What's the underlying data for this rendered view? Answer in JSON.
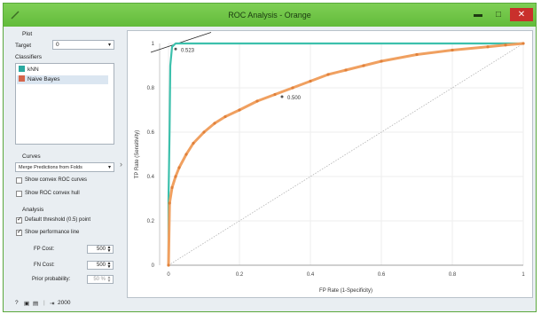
{
  "window": {
    "title": "ROC Analysis - Orange"
  },
  "controls": {
    "plot_section": "Plot",
    "target_label": "Target",
    "target_value": "0",
    "classifiers_label": "Classifiers",
    "classifiers": [
      {
        "name": "kNN",
        "color": "#2aa9a0"
      },
      {
        "name": "Naive Bayes",
        "color": "#d6654a"
      }
    ],
    "curves_label": "Curves",
    "curves_value": "Merge Predictions from Folds",
    "show_convex_curves": "Show convex ROC curves",
    "show_convex_hull": "Show ROC convex hull",
    "analysis_label": "Analysis",
    "default_threshold": "Default threshold (0.5) point",
    "show_performance_line": "Show performance line",
    "fp_cost_label": "FP Cost:",
    "fp_cost_value": "500",
    "fn_cost_label": "FN Cost:",
    "fn_cost_value": "500",
    "prior_label": "Prior probability:",
    "prior_value": "50 %"
  },
  "statusbar": {
    "count": "2000"
  },
  "chart_data": {
    "type": "line",
    "title": "",
    "xlabel": "FP Rate (1-Specificity)",
    "ylabel": "TP Rate (Sensitivity)",
    "xlim": [
      0,
      1
    ],
    "ylim": [
      0,
      1
    ],
    "x_ticks": [
      "0",
      "0.2",
      "0.4",
      "0.6",
      "0.8",
      "1"
    ],
    "y_ticks": [
      "0",
      "0.2",
      "0.4",
      "0.6",
      "0.8",
      "1"
    ],
    "grid": true,
    "diagonal": true,
    "series": [
      {
        "name": "kNN",
        "color": "#3cc0ac",
        "x": [
          0,
          0,
          0.003,
          0.005,
          0.01,
          0.02,
          1
        ],
        "y": [
          0,
          0.3,
          0.6,
          0.9,
          0.985,
          1,
          1
        ]
      },
      {
        "name": "Naive Bayes",
        "color": "#f0a060",
        "x": [
          0,
          0.003,
          0.01,
          0.02,
          0.03,
          0.05,
          0.07,
          0.1,
          0.13,
          0.16,
          0.2,
          0.25,
          0.3,
          0.35,
          0.4,
          0.45,
          0.5,
          0.55,
          0.6,
          0.7,
          0.8,
          0.9,
          0.95,
          1
        ],
        "y": [
          0,
          0.28,
          0.35,
          0.4,
          0.44,
          0.5,
          0.55,
          0.6,
          0.64,
          0.67,
          0.7,
          0.74,
          0.77,
          0.8,
          0.83,
          0.86,
          0.88,
          0.9,
          0.92,
          0.95,
          0.97,
          0.985,
          0.993,
          1
        ]
      }
    ],
    "annotations": [
      {
        "text": "0.523",
        "x": 0.02,
        "y": 0.975
      },
      {
        "text": "0.500",
        "x": 0.32,
        "y": 0.76
      }
    ],
    "performance_line": {
      "x": [
        -0.05,
        0.12
      ],
      "y": [
        0.96,
        1.05
      ]
    }
  }
}
